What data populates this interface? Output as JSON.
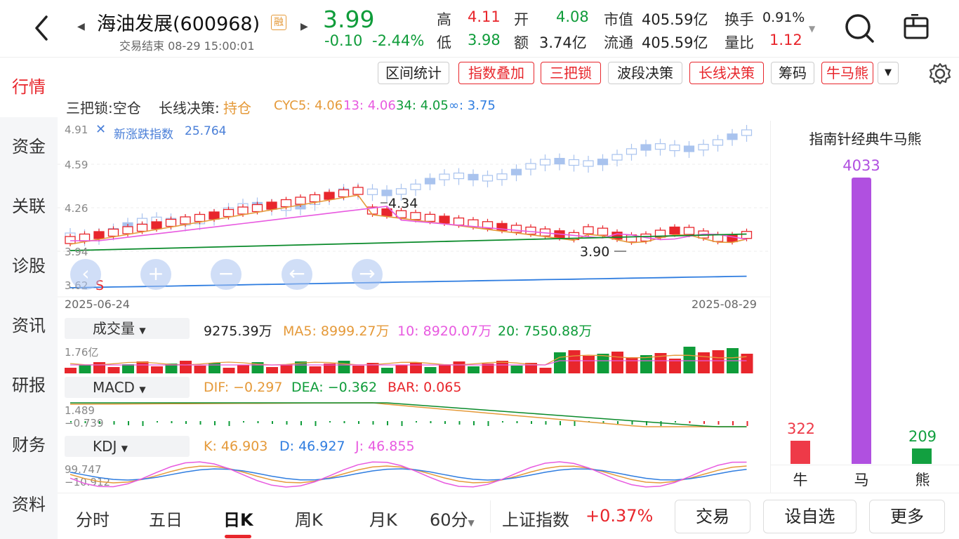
{
  "header": {
    "stock_name": "海油发展(600968)",
    "rong_badge": "融",
    "status": "交易结束 08-29 15:00:01",
    "price": "3.99",
    "change": "-0.10",
    "change_pct": "-2.44%",
    "high_label": "高",
    "high": "4.11",
    "open_label": "开",
    "open": "4.08",
    "low_label": "低",
    "low": "3.98",
    "amount_label": "额",
    "amount": "3.74亿",
    "mktcap_label": "市值",
    "mktcap": "405.59亿",
    "float_label": "流通",
    "float": "405.59亿",
    "turnover_label": "换手",
    "turnover": "0.91%",
    "volratio_label": "量比",
    "volratio": "1.12"
  },
  "sidebar": {
    "items": [
      "行情",
      "资金",
      "关联",
      "诊股",
      "资讯",
      "研报",
      "财务",
      "资料"
    ]
  },
  "toolbar": {
    "buttons": [
      "区间统计",
      "指数叠加",
      "三把锁",
      "波段决策",
      "长线决策",
      "筹码",
      "牛马熊"
    ]
  },
  "info": {
    "sanbasuo": "三把锁:空仓",
    "changxian_label": "长线决策:",
    "changxian_value": "持仓",
    "cyc5": "CYC5: 4.06",
    "cyc13": "13: 4.06",
    "cyc34": "34: 4.05",
    "cycinf": "∞: 3.75"
  },
  "kline": {
    "y_labels": [
      "4.91",
      "4.59",
      "4.26",
      "3.94",
      "3.62"
    ],
    "overlay_label": "新涨跌指数",
    "overlay_value": "25.764",
    "high_annot": "4.34",
    "low_annot": "3.90",
    "start_date": "2025-06-24",
    "end_date": "2025-08-29",
    "s_marker": "S"
  },
  "volume": {
    "title": "成交量",
    "value": "9275.39万",
    "ma5": "MA5: 8999.27万",
    "ma10": "10: 8920.07万",
    "ma20": "20: 7550.88万",
    "y_label": "1.76亿"
  },
  "macd": {
    "title": "MACD",
    "dif": "DIF: −0.297",
    "dea": "DEA: −0.362",
    "bar": "BAR: 0.065",
    "y_top": "1.489",
    "y_bottom": "−0.739"
  },
  "kdj": {
    "title": "KDJ",
    "k": "K: 46.903",
    "d": "D: 46.927",
    "j": "J: 46.855",
    "y_top": "99.747",
    "y_bottom": "−10.912"
  },
  "right_panel": {
    "title": "指南针经典牛马熊",
    "bull_label": "牛",
    "bull_value": "322",
    "horse_label": "马",
    "horse_value": "4033",
    "bear_label": "熊",
    "bear_value": "209",
    "colors": {
      "bull": "#ee3a48",
      "horse": "#b050e0",
      "bear": "#12a040"
    }
  },
  "bottom": {
    "tabs": [
      "分时",
      "五日",
      "日K",
      "周K",
      "月K",
      "60分"
    ],
    "index_name": "上证指数",
    "index_change": "+0.37%",
    "trade": "交易",
    "add_watch": "设自选",
    "more": "更多"
  },
  "colors": {
    "up": "#e8262c",
    "down": "#0f9c3a",
    "accent": "#e8262c"
  }
}
